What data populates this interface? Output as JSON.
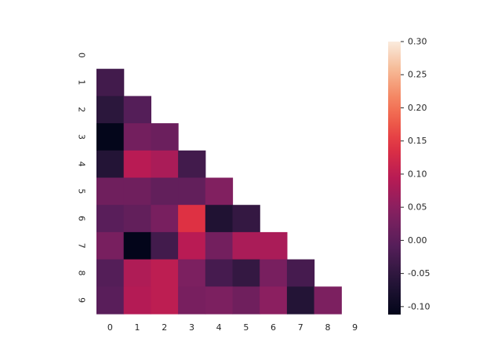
{
  "chart_data": {
    "type": "heatmap",
    "title": "",
    "xlabel": "",
    "ylabel": "",
    "x_categories": [
      "0",
      "1",
      "2",
      "3",
      "4",
      "5",
      "6",
      "7",
      "8",
      "9"
    ],
    "y_categories": [
      "0",
      "1",
      "2",
      "3",
      "4",
      "5",
      "6",
      "7",
      "8",
      "9"
    ],
    "mask": "upper-triangle-including-diagonal",
    "rows": [
      [],
      [
        -0.03
      ],
      [
        -0.055,
        -0.01
      ],
      [
        -0.11,
        0.025,
        0.015
      ],
      [
        -0.065,
        0.095,
        0.08,
        -0.03
      ],
      [
        0.02,
        0.02,
        0.005,
        0.005,
        0.04
      ],
      [
        -0.005,
        0.005,
        0.03,
        0.14,
        -0.07,
        -0.045
      ],
      [
        0.03,
        -0.115,
        -0.03,
        0.095,
        0.025,
        0.08,
        0.08
      ],
      [
        -0.01,
        0.085,
        0.1,
        0.035,
        -0.025,
        -0.045,
        0.03,
        -0.025
      ],
      [
        -0.005,
        0.09,
        0.1,
        0.03,
        0.035,
        0.02,
        0.05,
        -0.065,
        0.035
      ]
    ],
    "colorbar": {
      "vmin": -0.112,
      "vmax": 0.3,
      "ticks": [
        "-0.10",
        "-0.05",
        "0.00",
        "0.05",
        "0.10",
        "0.15",
        "0.20",
        "0.25",
        "0.30"
      ],
      "colormap": "rocket"
    },
    "grid": false
  }
}
